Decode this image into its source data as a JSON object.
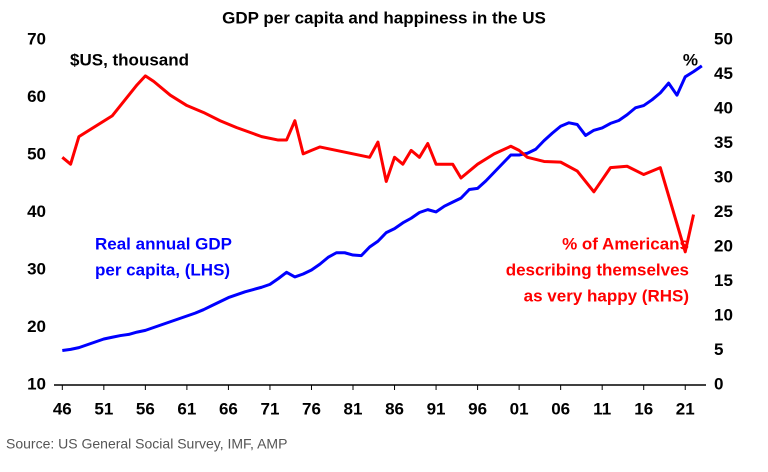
{
  "chart_data": {
    "type": "line",
    "title": "GDP per capita and happiness in the US",
    "source": "Source: US General Social Survey, IMF, AMP",
    "y_label": "$US, thousand",
    "y2_label": "%",
    "annotations": [
      {
        "lines": [
          "Real annual GDP",
          "per capita, (LHS)"
        ],
        "color": "#0000ff"
      },
      {
        "lines": [
          "% of Americans",
          "describing themselves",
          "as very happy (RHS)"
        ],
        "color": "#ff0000"
      }
    ],
    "xlim": [
      1945,
      2023.5
    ],
    "xticks": [
      {
        "value": 1946,
        "label": "46"
      },
      {
        "value": 1951,
        "label": "51"
      },
      {
        "value": 1956,
        "label": "56"
      },
      {
        "value": 1961,
        "label": "61"
      },
      {
        "value": 1966,
        "label": "66"
      },
      {
        "value": 1971,
        "label": "71"
      },
      {
        "value": 1976,
        "label": "76"
      },
      {
        "value": 1981,
        "label": "81"
      },
      {
        "value": 1986,
        "label": "86"
      },
      {
        "value": 1991,
        "label": "91"
      },
      {
        "value": 1996,
        "label": "96"
      },
      {
        "value": 2001,
        "label": "01"
      },
      {
        "value": 2006,
        "label": "06"
      },
      {
        "value": 2011,
        "label": "11"
      },
      {
        "value": 2016,
        "label": "16"
      },
      {
        "value": 2021,
        "label": "21"
      }
    ],
    "ylim": [
      10,
      70
    ],
    "yticks": [
      10,
      20,
      30,
      40,
      50,
      60,
      70
    ],
    "y2lim": [
      0,
      50
    ],
    "y2ticks": [
      0,
      5,
      10,
      15,
      20,
      25,
      30,
      35,
      40,
      45,
      50
    ],
    "series": [
      {
        "name": "Real annual GDP per capita",
        "color": "#0000ff",
        "x": [
          1946,
          1947,
          1948,
          1949,
          1950,
          1951,
          1952,
          1953,
          1954,
          1955,
          1956,
          1957,
          1958,
          1959,
          1960,
          1961,
          1962,
          1963,
          1964,
          1965,
          1966,
          1967,
          1968,
          1969,
          1970,
          1971,
          1972,
          1973,
          1974,
          1975,
          1976,
          1977,
          1978,
          1979,
          1980,
          1981,
          1982,
          1983,
          1984,
          1985,
          1986,
          1987,
          1988,
          1989,
          1990,
          1991,
          1992,
          1993,
          1994,
          1995,
          1996,
          1997,
          1998,
          1999,
          2000,
          2001,
          2002,
          2003,
          2004,
          2005,
          2006,
          2007,
          2008,
          2009,
          2010,
          2011,
          2012,
          2013,
          2014,
          2015,
          2016,
          2017,
          2018,
          2019,
          2020,
          2021,
          2022,
          2023
        ],
        "values": [
          16,
          16.2,
          16.5,
          17,
          17.5,
          18,
          18.3,
          18.6,
          18.8,
          19.2,
          19.5,
          20,
          20.5,
          21,
          21.5,
          22,
          22.5,
          23.1,
          23.8,
          24.5,
          25.2,
          25.7,
          26.2,
          26.6,
          27,
          27.5,
          28.5,
          29.6,
          28.8,
          29.3,
          30,
          31,
          32.2,
          33,
          33,
          32.6,
          32.5,
          34,
          35,
          36.5,
          37.2,
          38.2,
          39,
          40,
          40.5,
          40.1,
          41.1,
          41.8,
          42.5,
          44,
          44.2,
          45.5,
          47,
          48.5,
          50,
          50,
          50.3,
          51,
          52.5,
          53.8,
          55,
          55.6,
          55.3,
          53.4,
          54.3,
          54.7,
          55.5,
          56,
          57,
          58.2,
          58.6,
          59.6,
          60.8,
          62.5,
          60.4,
          63.6,
          64.5,
          65.5
        ]
      },
      {
        "name": "% of Americans describing themselves as very happy",
        "color": "#ff0000",
        "axis": "y2",
        "x": [
          1946,
          1947,
          1948,
          1952,
          1954,
          1955,
          1956,
          1957,
          1959,
          1961,
          1963,
          1965,
          1967,
          1970,
          1972,
          1973,
          1974,
          1975,
          1976,
          1977,
          1983,
          1984,
          1985,
          1986,
          1987,
          1988,
          1989,
          1990,
          1991,
          1993,
          1994,
          1996,
          1998,
          2000,
          2001,
          2002,
          2004,
          2006,
          2008,
          2010,
          2012,
          2014,
          2016,
          2018,
          2021,
          2022
        ],
        "values": [
          33,
          32,
          36,
          39,
          42,
          43.5,
          44.8,
          44,
          42,
          40.5,
          39.5,
          38.3,
          37.3,
          36,
          35.5,
          35.5,
          38.3,
          33.5,
          34,
          34.5,
          33,
          35.2,
          29.5,
          33,
          32,
          34,
          33,
          35,
          32,
          32,
          30,
          32,
          33.5,
          34.6,
          34,
          33,
          32.4,
          32.3,
          31,
          28,
          31.5,
          31.7,
          30.5,
          31.5,
          19.3,
          24.7
        ]
      }
    ]
  }
}
